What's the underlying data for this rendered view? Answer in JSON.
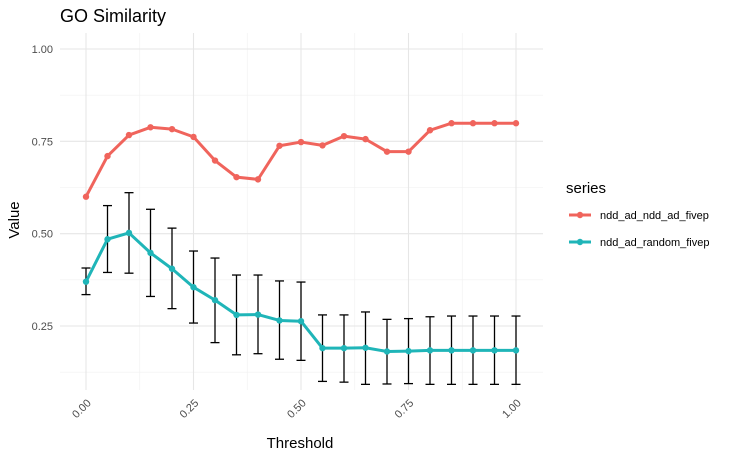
{
  "chart_data": {
    "type": "line",
    "title": "GO Similarity",
    "xlabel": "Threshold",
    "ylabel": "Value",
    "xlim": [
      0,
      1
    ],
    "ylim": [
      0.1,
      1.03
    ],
    "x_ticks": [
      0,
      0.25,
      0.5,
      0.75,
      1
    ],
    "x_tick_labels": [
      "0.00",
      "0.25",
      "0.50",
      "0.75",
      "1.00"
    ],
    "y_ticks": [
      0.25,
      0.5,
      0.75,
      1
    ],
    "y_tick_labels": [
      "0.25",
      "0.50",
      "0.75",
      "1.00"
    ],
    "grid": true,
    "legend": {
      "title": "series",
      "position": "right"
    },
    "x": [
      0,
      0.05,
      0.1,
      0.15,
      0.2,
      0.25,
      0.3,
      0.35,
      0.4,
      0.45,
      0.5,
      0.55,
      0.6,
      0.65,
      0.7,
      0.75,
      0.8,
      0.85,
      0.9,
      0.95,
      1
    ],
    "series": [
      {
        "name": "ndd_ad_ndd_ad_fivep",
        "color": "#F0645C",
        "values": [
          0.6,
          0.71,
          0.767,
          0.788,
          0.783,
          0.762,
          0.698,
          0.653,
          0.647,
          0.738,
          0.748,
          0.739,
          0.764,
          0.756,
          0.722,
          0.722,
          0.78,
          0.799,
          0.799,
          0.799,
          0.799
        ]
      },
      {
        "name": "ndd_ad_random_fivep",
        "color": "#1FB5B8",
        "values": [
          0.37,
          0.485,
          0.502,
          0.448,
          0.405,
          0.355,
          0.32,
          0.28,
          0.281,
          0.265,
          0.263,
          0.19,
          0.19,
          0.191,
          0.181,
          0.182,
          0.184,
          0.184,
          0.184,
          0.184,
          0.184
        ],
        "error_low": [
          0.335,
          0.395,
          0.393,
          0.33,
          0.297,
          0.258,
          0.205,
          0.172,
          0.175,
          0.16,
          0.157,
          0.1,
          0.098,
          0.092,
          0.093,
          0.094,
          0.092,
          0.092,
          0.092,
          0.092,
          0.092
        ],
        "error_high": [
          0.407,
          0.576,
          0.611,
          0.566,
          0.515,
          0.453,
          0.434,
          0.388,
          0.388,
          0.372,
          0.369,
          0.28,
          0.28,
          0.288,
          0.268,
          0.27,
          0.275,
          0.277,
          0.277,
          0.277,
          0.277
        ]
      }
    ]
  }
}
